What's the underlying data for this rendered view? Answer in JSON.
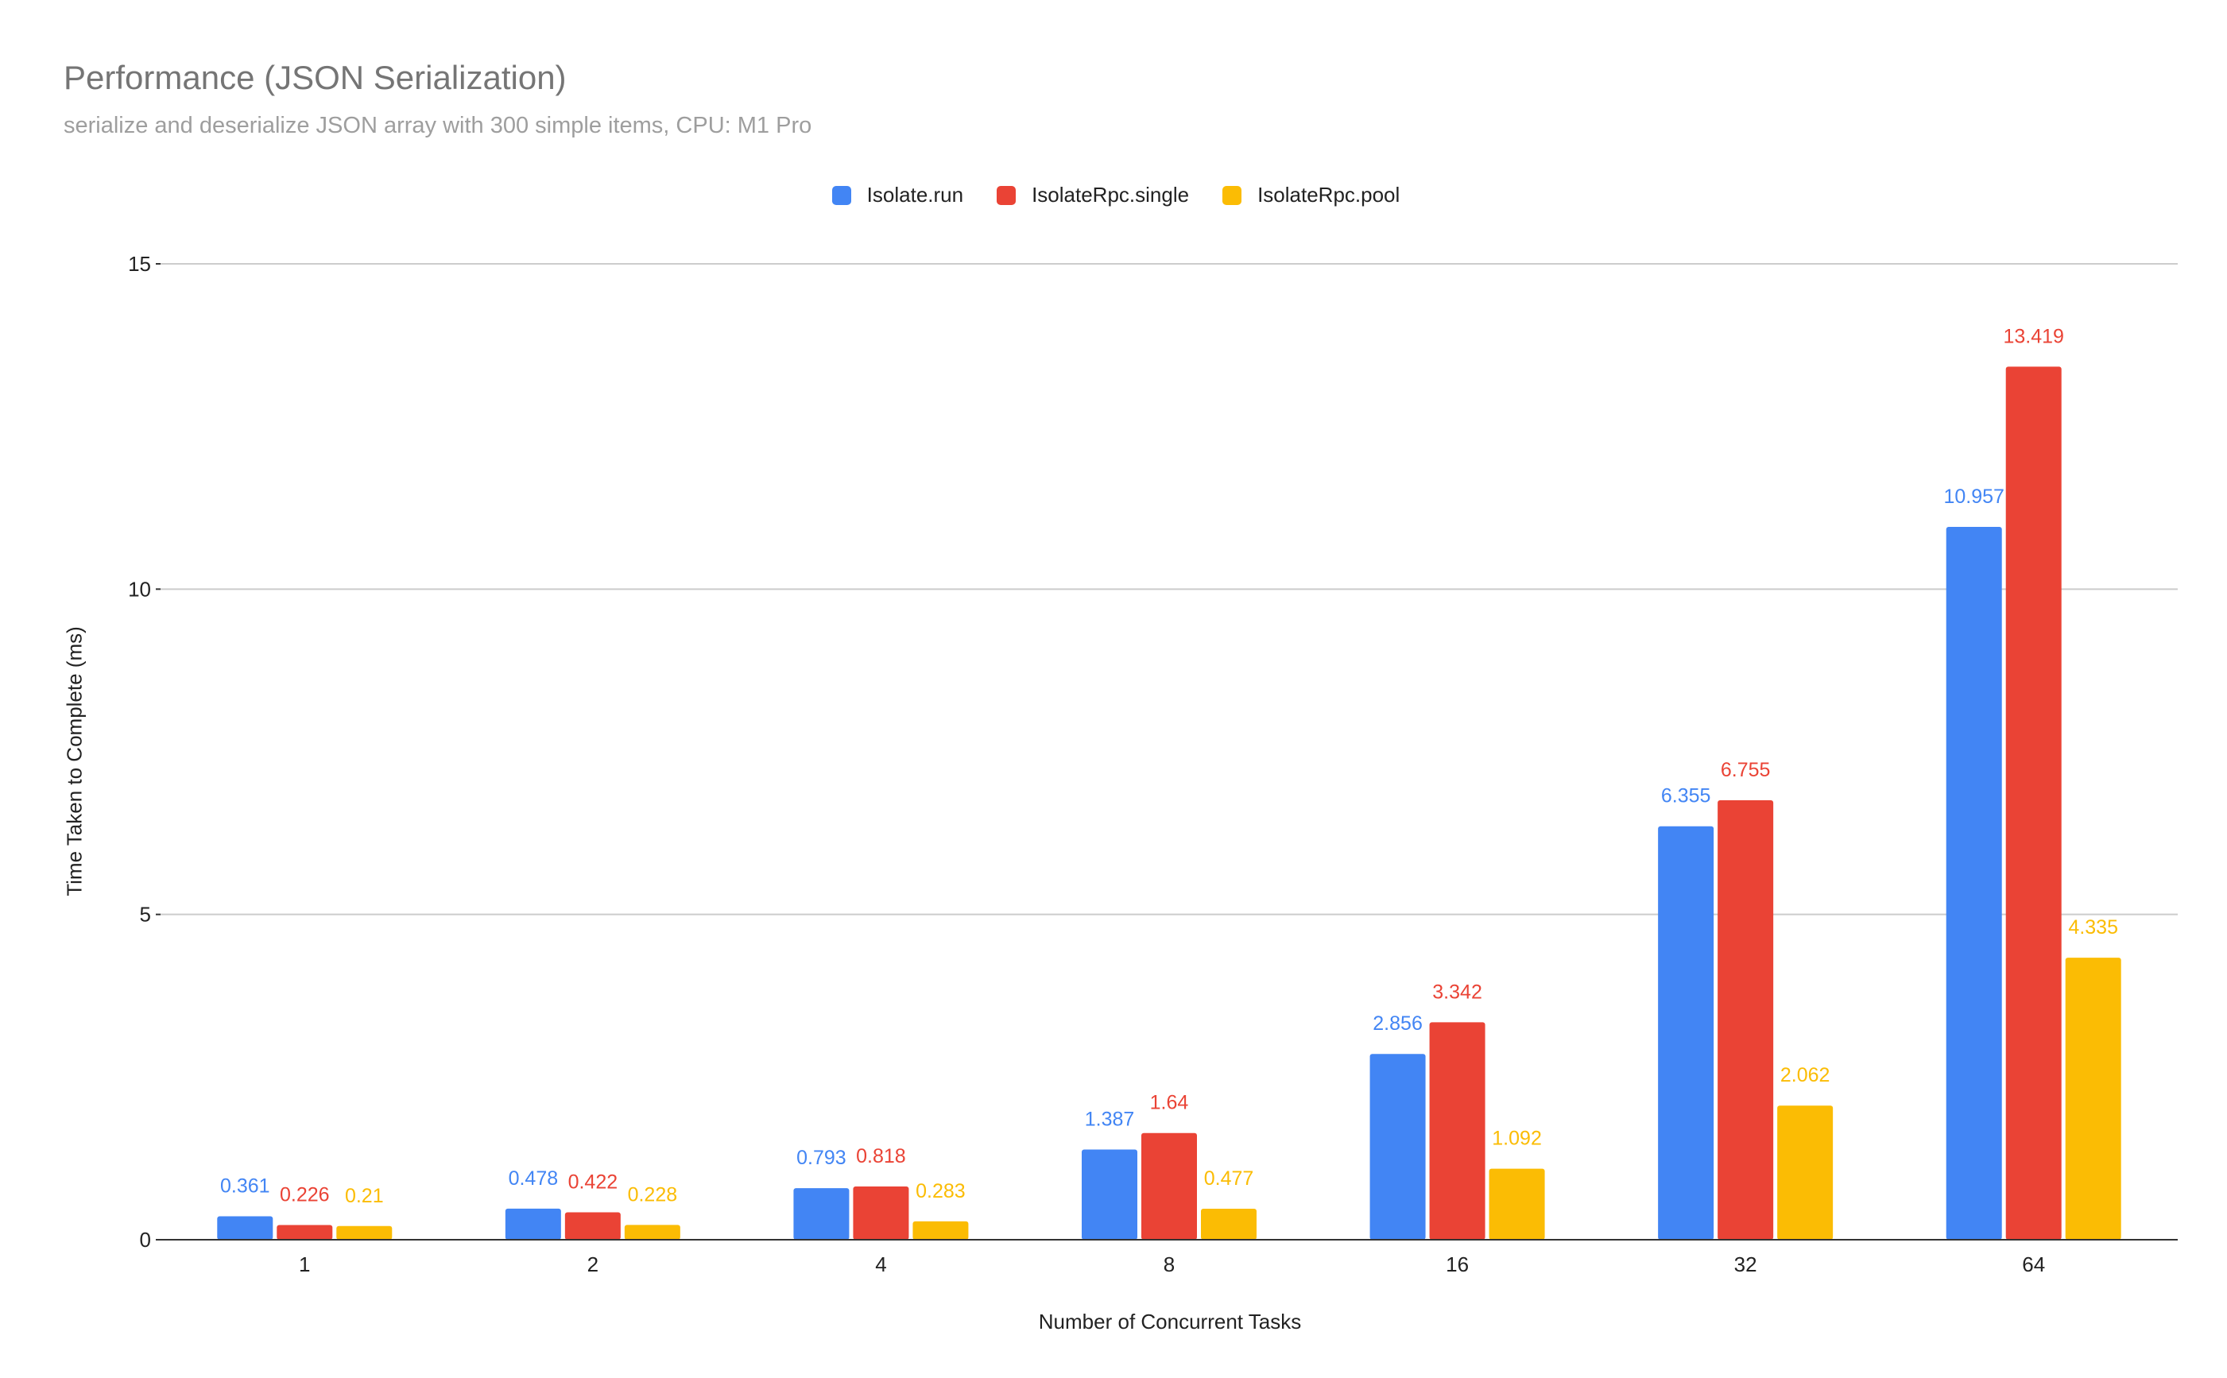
{
  "colors": {
    "series_0": "#4285f4",
    "series_1": "#ea4335",
    "series_2": "#fbbc04",
    "grid": "#cccccc",
    "axis": "#333333"
  },
  "chart_data": {
    "type": "bar",
    "title": "Performance (JSON Serialization)",
    "subtitle": "serialize and deserialize JSON array with 300 simple items, CPU: M1 Pro",
    "xlabel": "Number of Concurrent Tasks",
    "ylabel": "Time Taken to Complete (ms)",
    "ylim": [
      0,
      15
    ],
    "yticks": [
      "0",
      "5",
      "10",
      "15"
    ],
    "grid": true,
    "legend_position": "top-center",
    "categories": [
      "1",
      "2",
      "4",
      "8",
      "16",
      "32",
      "64"
    ],
    "series": [
      {
        "name": "Isolate.run",
        "values": [
          0.361,
          0.478,
          0.793,
          1.387,
          2.856,
          6.355,
          10.957
        ],
        "labels": [
          "0.361",
          "0.478",
          "0.793",
          "1.387",
          "2.856",
          "6.355",
          "10.957"
        ]
      },
      {
        "name": "IsolateRpc.single",
        "values": [
          0.226,
          0.422,
          0.818,
          1.64,
          3.342,
          6.755,
          13.419
        ],
        "labels": [
          "0.226",
          "0.422",
          "0.818",
          "1.64",
          "3.342",
          "6.755",
          "13.419"
        ]
      },
      {
        "name": "IsolateRpc.pool",
        "values": [
          0.21,
          0.228,
          0.283,
          0.477,
          1.092,
          2.062,
          4.335
        ],
        "labels": [
          "0.21",
          "0.228",
          "0.283",
          "0.477",
          "1.092",
          "2.062",
          "4.335"
        ]
      }
    ]
  }
}
